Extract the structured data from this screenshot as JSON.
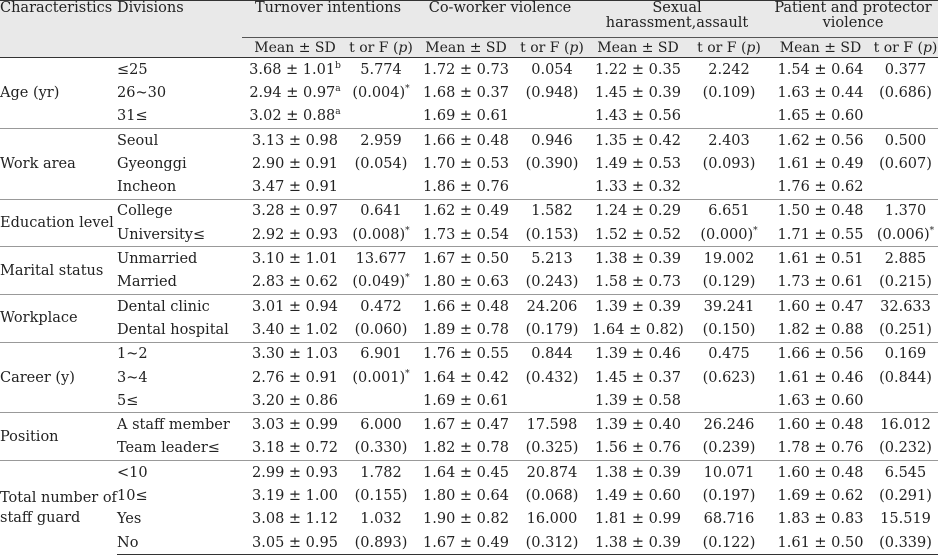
{
  "header": {
    "characteristics": "Characteristics",
    "divisions": "Divisions",
    "groups": [
      "Turnover intentions",
      "Co-worker violence",
      "Sexual harassment,assault",
      "Patient and protector violence"
    ],
    "mean_sd": "Mean ± SD",
    "t_or_f": "t or F (",
    "p": "p",
    "close": ")"
  },
  "groups": [
    {
      "char": "Age (yr)",
      "rows": [
        {
          "div": "≤25",
          "m": [
            "3.68 ± 1.01",
            "1.72 ± 0.73",
            "1.22 ± 0.35",
            "1.54 ± 0.64"
          ],
          "sup": "b",
          "s": [
            "5.774",
            "0.054",
            "2.242",
            "0.377"
          ]
        },
        {
          "div": "26~30",
          "m": [
            "2.94 ± 0.97",
            "1.68 ± 0.37",
            "1.45 ± 0.39",
            "1.63 ± 0.44"
          ],
          "sup": "a",
          "s": [
            "(0.004)*",
            "(0.948)",
            "(0.109)",
            "(0.686)"
          ]
        },
        {
          "div": "31≤",
          "m": [
            "3.02 ± 0.88",
            "1.69 ± 0.61",
            "1.43 ± 0.56",
            "1.65 ± 0.60"
          ],
          "sup": "a",
          "s": [
            "",
            "",
            "",
            ""
          ]
        }
      ]
    },
    {
      "char": "Work area",
      "rows": [
        {
          "div": "Seoul",
          "m": [
            "3.13 ± 0.98",
            "1.66 ± 0.48",
            "1.35 ± 0.42",
            "1.62 ± 0.56"
          ],
          "sup": "",
          "s": [
            "2.959",
            "0.946",
            "2.403",
            "0.500"
          ]
        },
        {
          "div": "Gyeonggi",
          "m": [
            "2.90 ± 0.91",
            "1.70 ± 0.53",
            "1.49 ± 0.53",
            "1.61 ± 0.49"
          ],
          "sup": "",
          "s": [
            "(0.054)",
            "(0.390)",
            "(0.093)",
            "(0.607)"
          ]
        },
        {
          "div": "Incheon",
          "m": [
            "3.47 ± 0.91",
            "1.86 ± 0.76",
            "1.33 ± 0.32",
            "1.76 ± 0.62"
          ],
          "sup": "",
          "s": [
            "",
            "",
            "",
            ""
          ]
        }
      ]
    },
    {
      "char": "Education level",
      "rows": [
        {
          "div": "College",
          "m": [
            "3.28 ± 0.97",
            "1.62 ± 0.49",
            "1.24 ± 0.29",
            "1.50 ± 0.48"
          ],
          "sup": "",
          "s": [
            "0.641",
            "1.582",
            "6.651",
            "1.370"
          ]
        },
        {
          "div": "University≤",
          "m": [
            "2.92 ± 0.93",
            "1.73 ± 0.54",
            "1.52 ± 0.52",
            "1.71 ± 0.55"
          ],
          "sup": "",
          "s": [
            "(0.008)*",
            "(0.153)",
            "(0.000)*",
            "(0.006)*"
          ]
        }
      ]
    },
    {
      "char": "Marital status",
      "rows": [
        {
          "div": "Unmarried",
          "m": [
            "3.10 ± 1.01",
            "1.67 ± 0.50",
            "1.38 ± 0.39",
            "1.61 ± 0.51"
          ],
          "sup": "",
          "s": [
            "13.677",
            "5.213",
            "19.002",
            "2.885"
          ]
        },
        {
          "div": "Married",
          "m": [
            "2.83 ± 0.62",
            "1.80 ± 0.63",
            "1.58 ± 0.73",
            "1.73 ± 0.61"
          ],
          "sup": "",
          "s": [
            "(0.049)*",
            "(0.243)",
            "(0.129)",
            "(0.215)"
          ]
        }
      ]
    },
    {
      "char": "Workplace",
      "rows": [
        {
          "div": "Dental clinic",
          "m": [
            "3.01 ± 0.94",
            "1.66 ± 0.48",
            "1.39 ± 0.39",
            "1.60 ± 0.47"
          ],
          "sup": "",
          "s": [
            "0.472",
            "24.206",
            "39.241",
            "32.633"
          ]
        },
        {
          "div": "Dental hospital",
          "m": [
            "3.40 ± 1.02",
            "1.89 ± 0.78",
            "1.64 ± 0.82)",
            "1.82 ± 0.88"
          ],
          "sup": "",
          "s": [
            "(0.060)",
            "(0.179)",
            "(0.150)",
            "(0.251)"
          ]
        }
      ]
    },
    {
      "char": "Career (y)",
      "rows": [
        {
          "div": "1~2",
          "m": [
            "3.30 ± 1.03",
            "1.76 ± 0.55",
            "1.39 ± 0.46",
            "1.66 ± 0.56"
          ],
          "sup": "",
          "s": [
            "6.901",
            "0.844",
            "0.475",
            "0.169"
          ]
        },
        {
          "div": "3~4",
          "m": [
            "2.76 ± 0.91",
            "1.64 ± 0.42",
            "1.45 ± 0.37",
            "1.61 ± 0.46"
          ],
          "sup": "",
          "s": [
            "(0.001)*",
            "(0.432)",
            "(0.623)",
            "(0.844)"
          ]
        },
        {
          "div": "5≤",
          "m": [
            "3.20 ± 0.86",
            "1.69 ± 0.61",
            "1.39 ± 0.58",
            "1.63 ± 0.60"
          ],
          "sup": "",
          "s": [
            "",
            "",
            "",
            ""
          ]
        }
      ]
    },
    {
      "char": "Position",
      "rows": [
        {
          "div": "A staff member",
          "m": [
            "3.03 ± 0.99",
            "1.67 ± 0.47",
            "1.39 ± 0.40",
            "1.60 ± 0.48"
          ],
          "sup": "",
          "s": [
            "6.000",
            "17.598",
            "26.246",
            "16.012"
          ]
        },
        {
          "div": "Team leader≤",
          "m": [
            "3.18 ± 0.72",
            "1.82 ± 0.78",
            "1.56 ± 0.76",
            "1.78 ± 0.76"
          ],
          "sup": "",
          "s": [
            "(0.330)",
            "(0.325)",
            "(0.239)",
            "(0.232)"
          ]
        }
      ]
    },
    {
      "char": "Total number of staff guard",
      "rows": [
        {
          "div": "<10",
          "m": [
            "2.99 ± 0.93",
            "1.64 ± 0.45",
            "1.38 ± 0.39",
            "1.60 ± 0.48"
          ],
          "sup": "",
          "s": [
            "1.782",
            "20.874",
            "10.071",
            "6.545"
          ]
        },
        {
          "div": "10≤",
          "m": [
            "3.19 ± 1.00",
            "1.80 ± 0.64",
            "1.49 ± 0.60",
            "1.69 ± 0.62"
          ],
          "sup": "",
          "s": [
            "(0.155)",
            "(0.068)",
            "(0.197)",
            "(0.291)"
          ]
        },
        {
          "div": "Yes",
          "m": [
            "3.08 ± 1.12",
            "1.90 ± 0.82",
            "1.81 ± 0.99",
            "1.83 ± 0.83"
          ],
          "sup": "",
          "s": [
            "1.032",
            "16.000",
            "68.716",
            "15.519"
          ]
        },
        {
          "div": "No",
          "m": [
            "3.05 ± 0.95",
            "1.67 ± 0.49",
            "1.38 ± 0.39",
            "1.61 ± 0.50"
          ],
          "sup": "",
          "s": [
            "(0.893)",
            "(0.312)",
            "(0.122)",
            "(0.339)"
          ]
        }
      ]
    }
  ]
}
